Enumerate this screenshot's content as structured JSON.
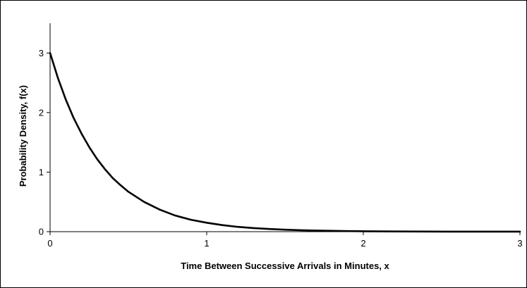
{
  "chart_data": {
    "type": "line",
    "title": "",
    "xlabel": "Time Between Successive Arrivals in Minutes, x",
    "ylabel": "Probability Density, f(x)",
    "xlim": [
      0,
      3
    ],
    "ylim": [
      0,
      3.5
    ],
    "grid": false,
    "legend": "none",
    "x_ticks": [
      0,
      1,
      2,
      3
    ],
    "x_tick_labels": [
      "0",
      "1",
      "2",
      "3"
    ],
    "y_ticks": [
      0,
      1,
      2,
      3
    ],
    "y_tick_labels": [
      "0",
      "1",
      "2",
      "3"
    ],
    "line_color": "#000000",
    "series": [
      {
        "x": [
          0,
          0.05,
          0.1,
          0.15,
          0.2,
          0.25,
          0.3,
          0.35,
          0.4,
          0.45,
          0.5,
          0.6,
          0.7,
          0.8,
          0.9,
          1.0,
          1.1,
          1.2,
          1.3,
          1.4,
          1.5,
          1.6,
          1.7,
          1.8,
          1.9,
          2.0,
          2.2,
          2.4,
          2.6,
          2.8,
          3.0
        ],
        "values": [
          3.0,
          2.58,
          2.22,
          1.91,
          1.65,
          1.42,
          1.22,
          1.05,
          0.9,
          0.78,
          0.67,
          0.5,
          0.37,
          0.27,
          0.2,
          0.15,
          0.11,
          0.08,
          0.06,
          0.045,
          0.033,
          0.025,
          0.018,
          0.014,
          0.01,
          0.007,
          0.004,
          0.002,
          0.001,
          0.0007,
          0.0004
        ]
      }
    ]
  }
}
